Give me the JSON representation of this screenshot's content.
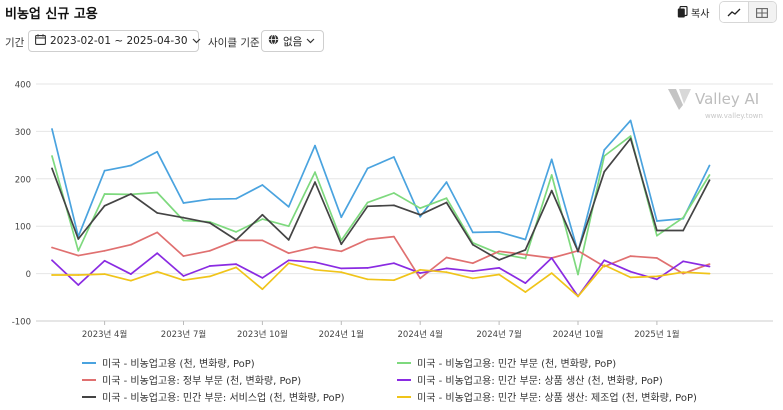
{
  "header": {
    "title": "비농업 신규 고용",
    "copy_label": "복사",
    "copy_icon": "clipboard-icon",
    "view_line_icon": "line-chart-icon",
    "view_table_icon": "table-icon"
  },
  "filters": {
    "period_label": "기간",
    "period_value": "2023-02-01 ~ 2025-04-30",
    "cycle_label": "사이클 기준",
    "cycle_value": "없음"
  },
  "watermark": {
    "brand": "Valley AI",
    "url": "www.valley.town"
  },
  "chart_data": {
    "type": "line",
    "ylim": [
      -100,
      400
    ],
    "yticks": [
      -100,
      0,
      100,
      200,
      300,
      400
    ],
    "grid": "horizontal",
    "legend_placement": "bottom",
    "xticks": [
      "2023년 4월",
      "2023년 7월",
      "2023년 10월",
      "2024년 1월",
      "2024년 4월",
      "2024년 7월",
      "2024년 10월",
      "2025년 1월"
    ],
    "x": [
      "2023-02",
      "2023-03",
      "2023-04",
      "2023-05",
      "2023-06",
      "2023-07",
      "2023-08",
      "2023-09",
      "2023-10",
      "2023-11",
      "2023-12",
      "2024-01",
      "2024-02",
      "2024-03",
      "2024-04",
      "2024-05",
      "2024-06",
      "2024-07",
      "2024-08",
      "2024-09",
      "2024-10",
      "2024-11",
      "2024-12",
      "2025-01",
      "2025-02",
      "2025-03",
      "2025-04"
    ],
    "series": [
      {
        "name": "미국 - 비농업고용 (천, 변화량, PoP)",
        "color": "#4aa3df",
        "values": [
          305,
          78,
          217,
          228,
          257,
          149,
          157,
          158,
          187,
          141,
          270,
          119,
          222,
          246,
          120,
          193,
          87,
          88,
          72,
          241,
          46,
          261,
          323,
          111,
          116,
          228,
          null
        ]
      },
      {
        "name": "미국 - 비농업고용: 민간 부문 (천, 변화량, PoP)",
        "color": "#7ed97e",
        "values": [
          248,
          48,
          168,
          167,
          171,
          112,
          109,
          88,
          115,
          100,
          214,
          70,
          150,
          170,
          138,
          159,
          65,
          42,
          32,
          208,
          -2,
          248,
          290,
          80,
          118,
          208,
          null
        ]
      },
      {
        "name": "미국 - 비농업고용: 정부 부문 (천, 변화량, PoP)",
        "color": "#e07070",
        "values": [
          55,
          38,
          48,
          61,
          87,
          37,
          48,
          70,
          70,
          43,
          56,
          47,
          72,
          78,
          -10,
          34,
          22,
          47,
          40,
          33,
          48,
          15,
          37,
          33,
          0,
          20,
          null
        ]
      },
      {
        "name": "미국 - 비농업고용: 민간 부문: 상품 생산 (천, 변화량, PoP)",
        "color": "#8a2be2",
        "values": [
          28,
          -24,
          27,
          -1,
          43,
          -5,
          16,
          20,
          -9,
          28,
          24,
          11,
          12,
          22,
          1,
          11,
          5,
          12,
          -20,
          33,
          -48,
          28,
          4,
          -12,
          26,
          15,
          null
        ]
      },
      {
        "name": "미국 - 비농업고용: 민간 부문: 서비스업 (천, 변화량, PoP)",
        "color": "#444444",
        "values": [
          222,
          73,
          143,
          168,
          128,
          118,
          107,
          71,
          124,
          71,
          193,
          62,
          142,
          144,
          124,
          150,
          61,
          29,
          50,
          175,
          47,
          215,
          285,
          91,
          91,
          197,
          null
        ]
      },
      {
        "name": "미국 - 비농업고용: 민간 부문: 상품 생산: 제조업 (천, 변화량, PoP)",
        "color": "#f0c419",
        "values": [
          -3,
          -3,
          -1,
          -15,
          4,
          -14,
          -6,
          13,
          -33,
          22,
          8,
          3,
          -12,
          -14,
          8,
          3,
          -10,
          -2,
          -39,
          1,
          -48,
          18,
          -8,
          -6,
          3,
          0,
          null
        ]
      }
    ]
  }
}
